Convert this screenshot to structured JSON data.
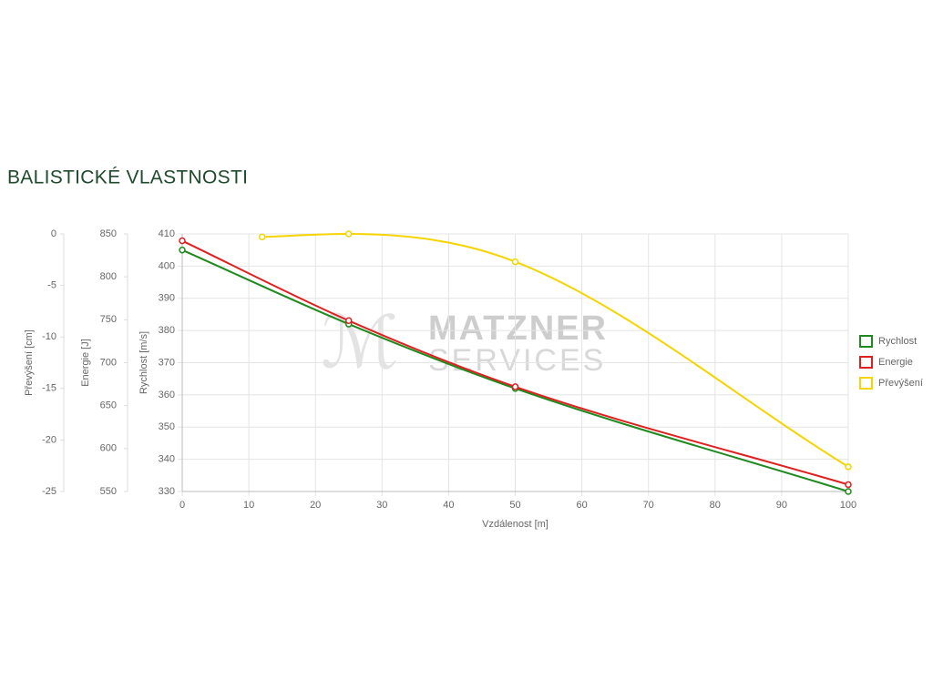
{
  "chart_data": {
    "type": "line",
    "title": "BALISTICKÉ VLASTNOSTI",
    "watermark": [
      "MATZNER",
      "SERVICES"
    ],
    "xlabel": "Vzdálenost [m]",
    "ylabel": "Rychlost [m/s]",
    "y2label": "Energie [J]",
    "y3label": "Převýšení [cm]",
    "x": [
      0,
      25,
      50,
      100
    ],
    "xlim": [
      0,
      100
    ],
    "xticks": [
      0,
      10,
      20,
      30,
      40,
      50,
      60,
      70,
      80,
      90,
      100
    ],
    "ylim": [
      330,
      410
    ],
    "yticks": [
      330,
      340,
      350,
      360,
      370,
      380,
      390,
      400,
      410
    ],
    "y2lim": [
      550,
      850
    ],
    "y2ticks": [
      550,
      600,
      650,
      700,
      750,
      800,
      850
    ],
    "y3lim": [
      -25,
      0
    ],
    "y3ticks": [
      -25,
      -20,
      -15,
      -10,
      -5,
      0
    ],
    "grid": true,
    "legend": "right",
    "series": [
      {
        "name": "Rychlost",
        "color": "#1e8a1e",
        "axis": "y",
        "values": [
          405,
          382,
          362,
          330
        ]
      },
      {
        "name": "Energie",
        "color": "#e02020",
        "axis": "y2",
        "values": [
          842,
          749,
          672,
          558
        ]
      },
      {
        "name": "Převýšení",
        "color": "#f5d400",
        "axis": "y3",
        "x": [
          12,
          25,
          50,
          100
        ],
        "values": [
          -0.3,
          0,
          -2.7,
          -22.6
        ]
      }
    ]
  }
}
